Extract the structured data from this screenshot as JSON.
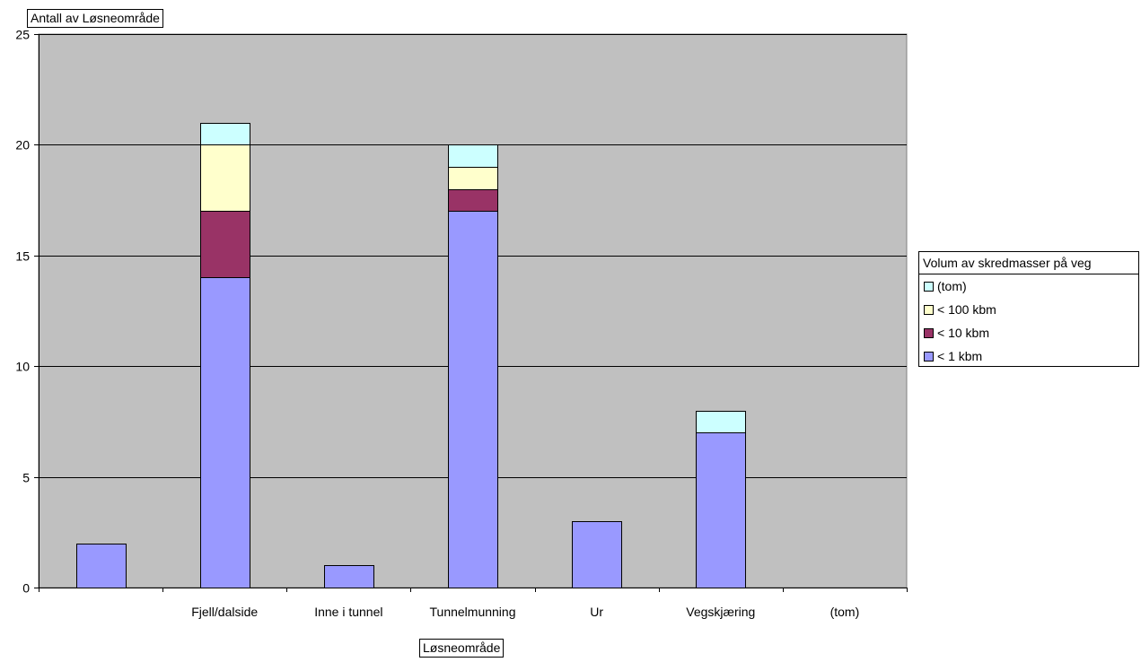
{
  "chart_data": {
    "type": "bar",
    "stacked": true,
    "categories": [
      "",
      "Fjell/dalside",
      "Inne i tunnel",
      "Tunnelmunning",
      "Ur",
      "Vegskjæring",
      "(tom)"
    ],
    "series": [
      {
        "name": "< 1 kbm",
        "color": "#9999FF",
        "values": [
          2,
          14,
          1,
          17,
          3,
          7,
          0
        ]
      },
      {
        "name": "< 10 kbm",
        "color": "#993366",
        "values": [
          0,
          3,
          0,
          1,
          0,
          0,
          0
        ]
      },
      {
        "name": "< 100 kbm",
        "color": "#FFFFCC",
        "values": [
          0,
          3,
          0,
          1,
          0,
          0,
          0
        ]
      },
      {
        "name": "(tom)",
        "color": "#CCFFFF",
        "values": [
          0,
          1,
          0,
          1,
          0,
          1,
          0
        ]
      }
    ],
    "yticks": [
      0,
      5,
      10,
      15,
      20,
      25
    ],
    "ylim": [
      0,
      25
    ],
    "grid": true,
    "plot_background": "#C0C0C0",
    "legend_position": "right",
    "legend_title": "Volum av skredmasser på veg",
    "ylabel": "Antall av Løsneområde",
    "xlabel": "Løsneområde"
  }
}
